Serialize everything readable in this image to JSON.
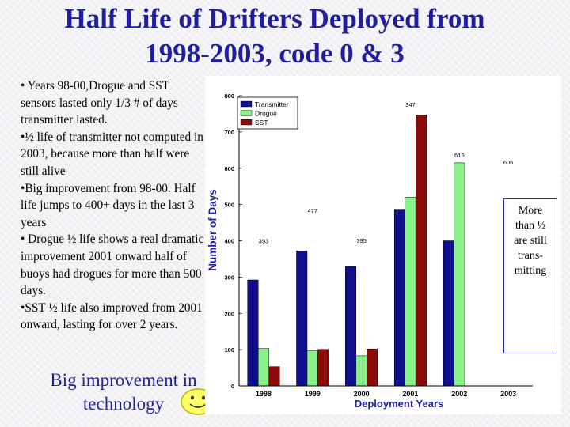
{
  "slide": {
    "title_line1": "Half Life of Drifters Deployed from",
    "title_line2": "1998-2003, code 0 & 3",
    "bullets": [
      "• Years 98-00,Drogue and SST sensors lasted only 1/3 # of days transmitter lasted.",
      "•½ life of transmitter not computed in 2003, because more than half were still alive",
      "•Big improvement from 98-00. Half life jumps to 400+ days in the last 3 years",
      "• Drogue ½ life shows a real dramatic improvement 2001 onward half of buoys had drogues for more than 500 days.",
      "•SST ½ life also improved from 2001 onward, lasting for over 2 years."
    ],
    "footer_line1": "Big improvement in",
    "footer_line2": "technology",
    "callout_lines": [
      "More",
      "than ½",
      "are still",
      "trans-",
      "mitting"
    ]
  },
  "chart_data": {
    "type": "bar",
    "xlabel": "Deployment Years",
    "ylabel": "Number of Days",
    "ylim": [
      0,
      800
    ],
    "yticks": [
      0,
      100,
      200,
      300,
      400,
      500,
      600,
      700,
      800
    ],
    "categories": [
      "1998",
      "1999",
      "2000",
      "2001",
      "2002",
      "2003"
    ],
    "series": [
      {
        "name": "Transmitter",
        "color": "#10108c",
        "values": [
          292,
          372,
          330,
          487,
          400,
          null
        ]
      },
      {
        "name": "Drogue",
        "color": "#8cf08c",
        "values": [
          103,
          97,
          83,
          520,
          615,
          null
        ]
      },
      {
        "name": "SST",
        "color": "#8c0a0a",
        "values": [
          53,
          101,
          102,
          747,
          null,
          null
        ]
      }
    ],
    "annotations": [
      {
        "text": "393",
        "x": "1998",
        "y": 393
      },
      {
        "text": "477",
        "x": "1999",
        "y": 477
      },
      {
        "text": "395",
        "x": "2000",
        "y": 395
      },
      {
        "text": "347",
        "x": "2001",
        "y": 770
      },
      {
        "text": "615",
        "x": "2002",
        "y": 630
      },
      {
        "text": "605",
        "x": "2003",
        "y": 610
      }
    ],
    "legend_position": "top-left",
    "grid": false
  }
}
